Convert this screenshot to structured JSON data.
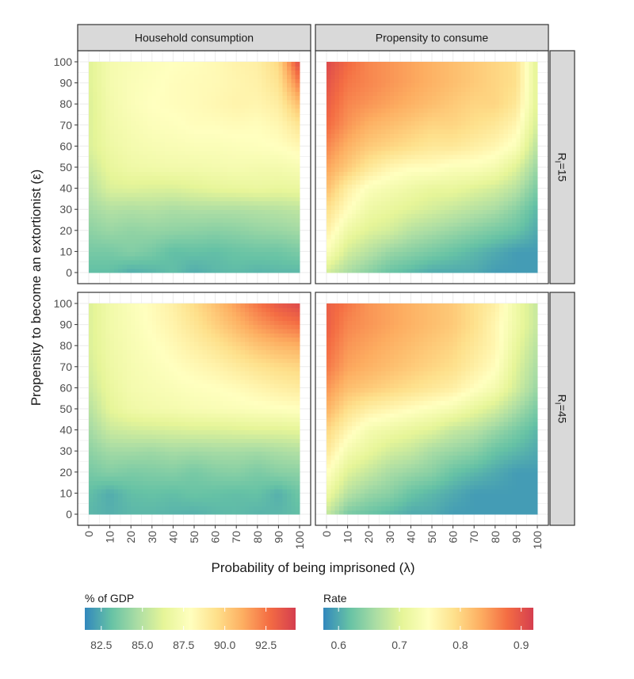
{
  "chart_data": {
    "type": "heatmap",
    "facet_columns": [
      "Household consumption",
      "Propensity to consume"
    ],
    "facet_rows": [
      "R_I=15",
      "R_I=45"
    ],
    "row_strip_main": "R",
    "row_strip_sub": "I",
    "row_strip_values": [
      "=15",
      "=45"
    ],
    "xlabel": "Probability of being imprisoned (λ)",
    "ylabel": "Propensity to become an extortionist (ε)",
    "x": [
      0,
      10,
      20,
      30,
      40,
      50,
      60,
      70,
      80,
      90,
      100
    ],
    "y": [
      0,
      10,
      20,
      30,
      40,
      50,
      60,
      70,
      80,
      90,
      100
    ],
    "xlim": [
      0,
      100
    ],
    "ylim": [
      0,
      100
    ],
    "grid": true,
    "legend_position": "bottom",
    "colorbars": [
      {
        "title": "% of GDP",
        "ticks": [
          "82.5",
          "85.0",
          "87.5",
          "90.0",
          "92.5"
        ],
        "tick_values": [
          82.5,
          85.0,
          87.5,
          90.0,
          92.5
        ],
        "min": 81.5,
        "max": 94.3
      },
      {
        "title": "Rate",
        "ticks": [
          "0.6",
          "0.7",
          "0.8",
          "0.9"
        ],
        "tick_values": [
          0.6,
          0.7,
          0.8,
          0.9
        ],
        "min": 0.575,
        "max": 0.92
      }
    ],
    "palette": [
      "#3288bd",
      "#66c2a5",
      "#abdda4",
      "#e6f598",
      "#ffffbf",
      "#fee08b",
      "#fdae61",
      "#f46d43",
      "#d53e4f"
    ],
    "panels": [
      {
        "row": 0,
        "col": 0,
        "scale": 0,
        "z": [
          [
            83.0,
            83.0,
            82.5,
            82.7,
            83.0,
            82.5,
            82.8,
            82.9,
            82.7,
            82.8,
            82.8
          ],
          [
            83.5,
            83.5,
            83.8,
            83.5,
            83.0,
            83.1,
            83.0,
            83.2,
            83.3,
            83.3,
            83.6
          ],
          [
            84.0,
            84.3,
            84.1,
            84.2,
            84.1,
            84.0,
            83.9,
            84.0,
            84.2,
            84.3,
            84.5
          ],
          [
            84.5,
            84.9,
            84.8,
            84.9,
            84.7,
            84.8,
            84.8,
            84.8,
            84.9,
            85.0,
            85.2
          ],
          [
            85.0,
            86.0,
            86.1,
            86.0,
            86.0,
            86.2,
            86.4,
            86.5,
            86.6,
            86.5,
            86.6
          ],
          [
            85.5,
            86.5,
            86.9,
            87.0,
            87.1,
            87.1,
            87.2,
            87.3,
            87.2,
            87.2,
            87.4
          ],
          [
            86.0,
            86.8,
            87.2,
            87.4,
            87.5,
            87.6,
            87.6,
            87.7,
            87.8,
            87.9,
            88.3
          ],
          [
            86.0,
            87.0,
            87.4,
            87.7,
            87.8,
            88.0,
            88.0,
            88.1,
            88.0,
            88.3,
            89.2
          ],
          [
            86.0,
            87.1,
            87.6,
            87.9,
            88.0,
            88.1,
            88.3,
            88.5,
            88.4,
            88.8,
            90.6
          ],
          [
            86.1,
            87.2,
            87.6,
            87.8,
            88.0,
            88.1,
            88.2,
            88.4,
            88.6,
            89.3,
            92.3
          ],
          [
            86.1,
            87.2,
            87.5,
            87.7,
            87.9,
            88.0,
            88.2,
            88.5,
            88.7,
            89.7,
            93.9
          ]
        ]
      },
      {
        "row": 0,
        "col": 1,
        "scale": 1,
        "z": [
          [
            0.69,
            0.66,
            0.64,
            0.62,
            0.61,
            0.6,
            0.6,
            0.6,
            0.59,
            0.59,
            0.59
          ],
          [
            0.74,
            0.69,
            0.67,
            0.65,
            0.64,
            0.63,
            0.62,
            0.61,
            0.6,
            0.59,
            0.59
          ],
          [
            0.77,
            0.72,
            0.7,
            0.69,
            0.67,
            0.66,
            0.65,
            0.64,
            0.63,
            0.62,
            0.6
          ],
          [
            0.79,
            0.75,
            0.72,
            0.71,
            0.7,
            0.69,
            0.68,
            0.67,
            0.66,
            0.64,
            0.61
          ],
          [
            0.82,
            0.77,
            0.74,
            0.73,
            0.72,
            0.71,
            0.71,
            0.7,
            0.69,
            0.67,
            0.63
          ],
          [
            0.84,
            0.81,
            0.78,
            0.76,
            0.75,
            0.75,
            0.74,
            0.74,
            0.73,
            0.7,
            0.65
          ],
          [
            0.86,
            0.83,
            0.81,
            0.8,
            0.79,
            0.78,
            0.78,
            0.77,
            0.76,
            0.74,
            0.67
          ],
          [
            0.88,
            0.85,
            0.83,
            0.82,
            0.81,
            0.8,
            0.8,
            0.79,
            0.78,
            0.76,
            0.69
          ],
          [
            0.89,
            0.86,
            0.85,
            0.84,
            0.83,
            0.82,
            0.81,
            0.8,
            0.8,
            0.78,
            0.7
          ],
          [
            0.9,
            0.87,
            0.86,
            0.85,
            0.84,
            0.83,
            0.82,
            0.81,
            0.8,
            0.79,
            0.7
          ],
          [
            0.91,
            0.88,
            0.86,
            0.85,
            0.84,
            0.83,
            0.82,
            0.81,
            0.8,
            0.79,
            0.7
          ]
        ]
      },
      {
        "row": 1,
        "col": 0,
        "scale": 0,
        "z": [
          [
            82.8,
            82.6,
            82.8,
            82.8,
            82.7,
            82.6,
            82.8,
            82.9,
            82.7,
            82.8,
            83.0
          ],
          [
            83.0,
            82.5,
            83.0,
            83.1,
            83.0,
            83.2,
            83.1,
            83.0,
            83.1,
            82.6,
            83.3
          ],
          [
            83.5,
            83.8,
            83.6,
            83.7,
            83.8,
            83.5,
            83.8,
            83.9,
            83.6,
            83.9,
            84.0
          ],
          [
            84.0,
            84.5,
            84.5,
            84.4,
            84.6,
            84.5,
            84.6,
            84.6,
            84.5,
            84.7,
            84.9
          ],
          [
            84.5,
            85.5,
            85.7,
            85.8,
            85.9,
            86.0,
            86.0,
            86.1,
            86.2,
            86.2,
            86.3
          ],
          [
            85.0,
            86.3,
            86.9,
            87.1,
            87.2,
            87.4,
            87.5,
            87.6,
            87.7,
            87.8,
            87.9
          ],
          [
            85.5,
            86.6,
            87.2,
            87.4,
            87.6,
            87.8,
            87.9,
            88.1,
            88.4,
            88.7,
            88.9
          ],
          [
            85.8,
            86.8,
            87.3,
            87.6,
            87.9,
            88.2,
            88.5,
            88.9,
            89.3,
            89.6,
            89.8
          ],
          [
            86.0,
            86.9,
            87.4,
            87.8,
            88.2,
            88.7,
            89.2,
            89.8,
            90.4,
            90.8,
            91.0
          ],
          [
            86.0,
            87.0,
            87.5,
            88.0,
            88.5,
            89.2,
            90.0,
            90.8,
            91.6,
            92.2,
            92.6
          ],
          [
            86.0,
            87.0,
            87.6,
            88.1,
            88.7,
            89.6,
            90.5,
            91.5,
            92.5,
            93.4,
            93.9
          ]
        ]
      },
      {
        "row": 1,
        "col": 1,
        "scale": 1,
        "z": [
          [
            0.68,
            0.63,
            0.62,
            0.61,
            0.6,
            0.6,
            0.59,
            0.59,
            0.59,
            0.59,
            0.59
          ],
          [
            0.72,
            0.67,
            0.65,
            0.64,
            0.62,
            0.61,
            0.6,
            0.59,
            0.59,
            0.59,
            0.59
          ],
          [
            0.75,
            0.7,
            0.68,
            0.66,
            0.65,
            0.64,
            0.62,
            0.61,
            0.6,
            0.59,
            0.59
          ],
          [
            0.78,
            0.73,
            0.71,
            0.69,
            0.68,
            0.66,
            0.65,
            0.64,
            0.62,
            0.61,
            0.6
          ],
          [
            0.8,
            0.76,
            0.73,
            0.72,
            0.71,
            0.7,
            0.68,
            0.67,
            0.65,
            0.63,
            0.61
          ],
          [
            0.83,
            0.79,
            0.77,
            0.76,
            0.75,
            0.74,
            0.73,
            0.71,
            0.69,
            0.66,
            0.63
          ],
          [
            0.85,
            0.82,
            0.81,
            0.8,
            0.79,
            0.78,
            0.77,
            0.75,
            0.73,
            0.69,
            0.65
          ],
          [
            0.87,
            0.84,
            0.83,
            0.82,
            0.81,
            0.8,
            0.79,
            0.77,
            0.75,
            0.7,
            0.66
          ],
          [
            0.88,
            0.85,
            0.84,
            0.83,
            0.82,
            0.81,
            0.8,
            0.78,
            0.76,
            0.71,
            0.67
          ],
          [
            0.89,
            0.86,
            0.85,
            0.84,
            0.83,
            0.82,
            0.81,
            0.79,
            0.76,
            0.72,
            0.68
          ],
          [
            0.89,
            0.87,
            0.85,
            0.84,
            0.83,
            0.82,
            0.81,
            0.79,
            0.77,
            0.72,
            0.68
          ]
        ]
      }
    ]
  }
}
